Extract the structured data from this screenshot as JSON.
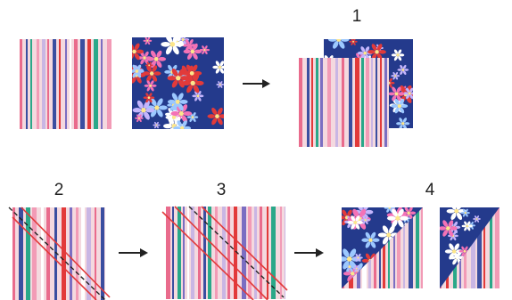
{
  "steps": [
    {
      "label": "1"
    },
    {
      "label": "2"
    },
    {
      "label": "3"
    },
    {
      "label": "4"
    }
  ],
  "icons": {
    "arrow": "arrow-right-icon",
    "stripe_fabric": "striped-fabric-swatch",
    "floral_fabric": "floral-fabric-swatch"
  },
  "colors": {
    "navy": "#243a8c",
    "stripe_base": "#f4d9df",
    "stripes": [
      "#e96b8c",
      "#3a4ea0",
      "#e23a3a",
      "#2aa889",
      "#7b6ec2",
      "#f29bb6",
      "#ffffff",
      "#c9b6e4"
    ],
    "flowers": [
      "#f472b6",
      "#c4b5fd",
      "#ffffff",
      "#e23a3a",
      "#9cc8ff"
    ],
    "seam": "#e23a3a",
    "dash": "#222222"
  }
}
